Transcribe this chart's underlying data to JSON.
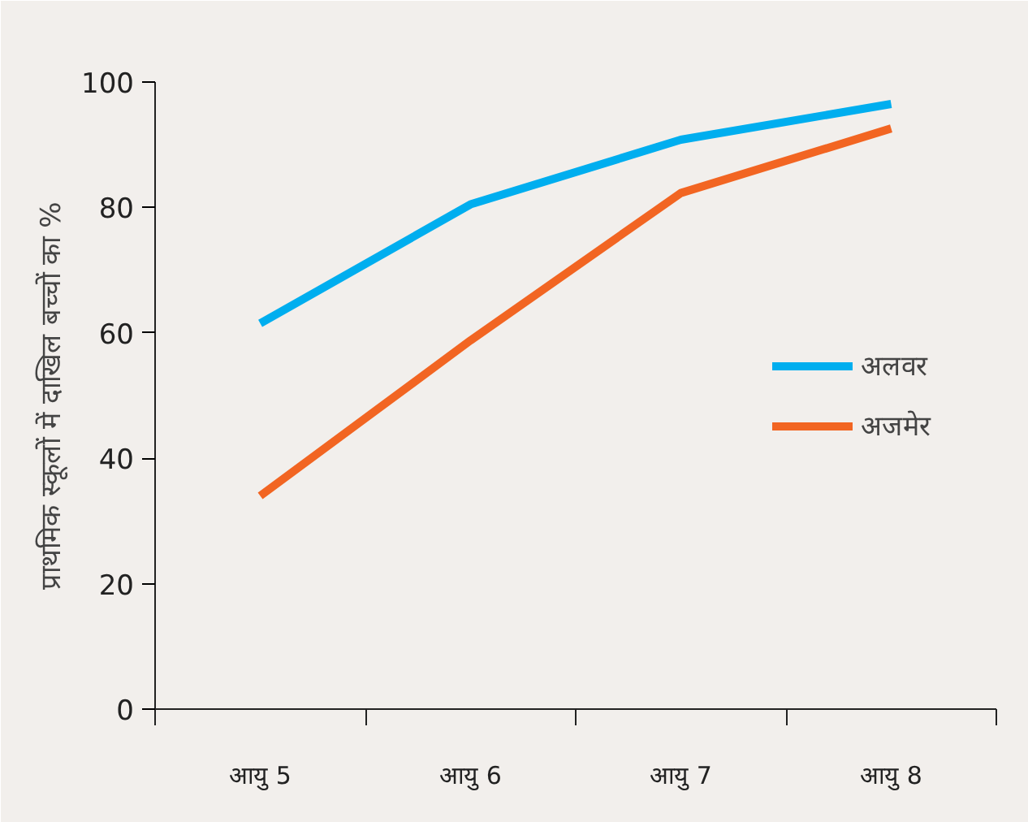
{
  "chart_data": {
    "type": "line",
    "ylabel": "प्राथमिक स्कूलों में दाखिल बच्चों का %",
    "categories": [
      "आयु 5",
      "आयु 6",
      "आयु 7",
      "आयु 8"
    ],
    "series": [
      {
        "name": "अलवर",
        "color": "#00aeef",
        "values": [
          61.5,
          80.5,
          90.8,
          96.5
        ]
      },
      {
        "name": "अजमेर",
        "color": "#f26522",
        "values": [
          34,
          58.8,
          82.3,
          92.6
        ]
      }
    ],
    "ylim": [
      0,
      100
    ],
    "yticks": [
      0,
      20,
      40,
      60,
      80,
      100
    ],
    "grid": false,
    "legend": "right",
    "marker": "none",
    "line_style": "solid"
  }
}
